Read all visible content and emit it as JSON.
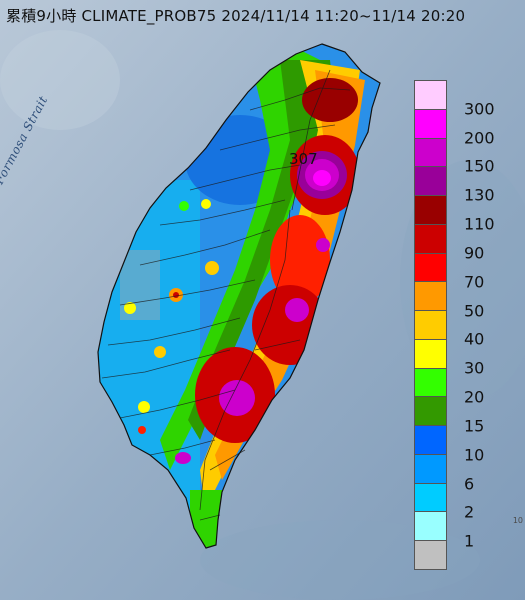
{
  "header": {
    "title": "累積9小時 CLIMATE_PROB75 2024/11/14 11:20~11/14 20:20"
  },
  "map": {
    "sea_label": "Formosa Strait",
    "peak_value": "307",
    "corner_fragment": "10"
  },
  "legend": {
    "levels": [
      {
        "label": "300",
        "color": "#ffccff"
      },
      {
        "label": "200",
        "color": "#ff00ff"
      },
      {
        "label": "150",
        "color": "#cc00cc"
      },
      {
        "label": "130",
        "color": "#990099"
      },
      {
        "label": "110",
        "color": "#990000"
      },
      {
        "label": "90",
        "color": "#cc0000"
      },
      {
        "label": "70",
        "color": "#ff0000"
      },
      {
        "label": "50",
        "color": "#ff9900"
      },
      {
        "label": "40",
        "color": "#ffcc00"
      },
      {
        "label": "30",
        "color": "#ffff00"
      },
      {
        "label": "20",
        "color": "#33ff00"
      },
      {
        "label": "15",
        "color": "#339900"
      },
      {
        "label": "10",
        "color": "#0066ff"
      },
      {
        "label": "6",
        "color": "#0099ff"
      },
      {
        "label": "2",
        "color": "#00ccff"
      },
      {
        "label": "1",
        "color": "#99ffff"
      },
      {
        "label": "",
        "color": "#c0c0c0"
      }
    ]
  }
}
